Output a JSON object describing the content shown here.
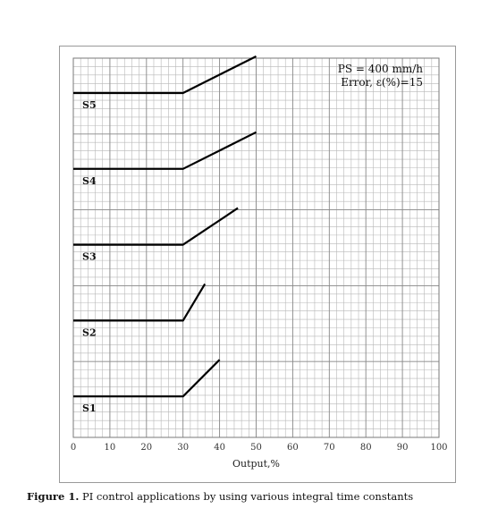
{
  "chart_data": {
    "type": "line",
    "xlabel": "Output,%",
    "ylabel": "",
    "xlim": [
      0,
      100
    ],
    "xticks": [
      0,
      10,
      20,
      30,
      40,
      50,
      60,
      70,
      80,
      90,
      100
    ],
    "grid": true,
    "annotations": [
      "PS = 400 mm/h",
      "Error, ε(%)=15"
    ],
    "series": [
      {
        "name": "S1",
        "x": [
          0,
          30,
          40
        ],
        "y": [
          0,
          0,
          1
        ]
      },
      {
        "name": "S2",
        "x": [
          0,
          30,
          36
        ],
        "y": [
          0,
          0,
          1
        ]
      },
      {
        "name": "S3",
        "x": [
          0,
          30,
          45
        ],
        "y": [
          0,
          0,
          1
        ]
      },
      {
        "name": "S4",
        "x": [
          0,
          30,
          50
        ],
        "y": [
          0,
          0,
          1
        ]
      },
      {
        "name": "S5",
        "x": [
          0,
          30,
          50
        ],
        "y": [
          0,
          0,
          1
        ]
      }
    ],
    "colors": {
      "line": "#000000",
      "grid": "#b8b8b8"
    }
  },
  "caption": {
    "label": "Figure 1.",
    "text": " PI control applications by using various integral time constants"
  }
}
